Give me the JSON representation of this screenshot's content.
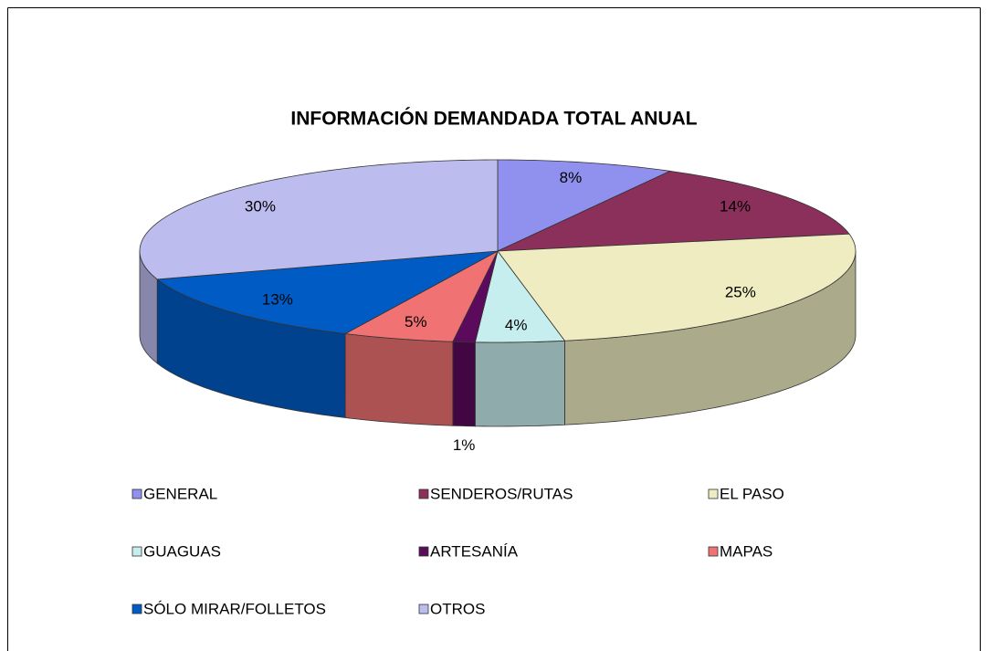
{
  "chart_data": {
    "type": "pie",
    "title": "INFORMACIÓN DEMANDADA TOTAL ANUAL",
    "categories": [
      "GENERAL",
      "SENDEROS/RUTAS",
      "EL PASO",
      "GUAGUAS",
      "ARTESANÍA",
      "MAPAS",
      "SÓLO MIRAR/FOLLETOS",
      "OTROS"
    ],
    "values": [
      8,
      14,
      25,
      4,
      1,
      5,
      13,
      30
    ],
    "value_labels": [
      "8%",
      "14%",
      "25%",
      "4%",
      "1%",
      "5%",
      "13%",
      "30%"
    ],
    "colors": [
      "#9090ee",
      "#8b2f5b",
      "#eeecc0",
      "#c6eeee",
      "#5c0a5c",
      "#f07272",
      "#005cc4",
      "#bcbcee"
    ]
  }
}
